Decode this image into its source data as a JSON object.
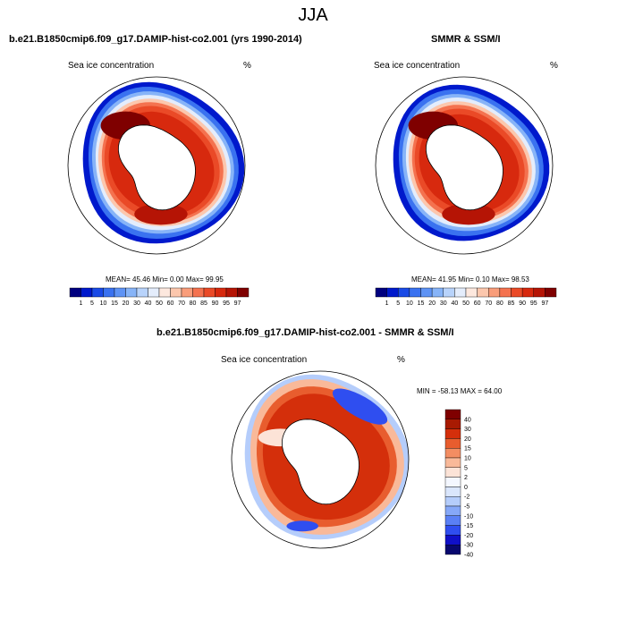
{
  "figure": {
    "title": "JJA"
  },
  "colors": {
    "abs": [
      "#00007f",
      "#0019cc",
      "#1a4ae6",
      "#3a72f0",
      "#5e93f5",
      "#87b4f8",
      "#b8d3fb",
      "#e4edfc",
      "#fde8de",
      "#fcc7ad",
      "#f99d7a",
      "#f4724f",
      "#ea4a27",
      "#d7290e",
      "#b51405",
      "#7f0000"
    ],
    "diff": [
      "#08086f",
      "#1010c8",
      "#2f4ef0",
      "#5a80f5",
      "#86a8f8",
      "#b5cdfb",
      "#dae6fc",
      "#f4f7ff",
      "#fce3d7",
      "#f9b999",
      "#f38d62",
      "#e85d2e",
      "#d42f0b",
      "#a81a02",
      "#7f0000"
    ]
  },
  "chart_data": [
    {
      "type": "heatmap",
      "projection": "south polar stereographic",
      "title": "b.e21.B1850cmip6.f09_g17.DAMIP-hist-co2.001 (yrs 1990-2014)",
      "variable": "Sea ice concentration",
      "units": "%",
      "stats": {
        "mean": 45.46,
        "min": 0.0,
        "max": 99.95
      },
      "stats_text": "MEAN=  45.46  Min=   0.00  Max=  99.95",
      "colorbar_labels": [
        "1",
        "5",
        "10",
        "15",
        "20",
        "30",
        "40",
        "50",
        "60",
        "70",
        "80",
        "85",
        "90",
        "95",
        "97"
      ]
    },
    {
      "type": "heatmap",
      "projection": "south polar stereographic",
      "title": "SMMR & SSM/I",
      "variable": "Sea ice concentration",
      "units": "%",
      "stats": {
        "mean": 41.95,
        "min": 0.1,
        "max": 98.53
      },
      "stats_text": "MEAN=  41.95  Min=   0.10  Max=  98.53",
      "colorbar_labels": [
        "1",
        "5",
        "10",
        "15",
        "20",
        "30",
        "40",
        "50",
        "60",
        "70",
        "80",
        "85",
        "90",
        "95",
        "97"
      ]
    },
    {
      "type": "heatmap",
      "projection": "south polar stereographic",
      "title": "b.e21.B1850cmip6.f09_g17.DAMIP-hist-co2.001 - SMMR & SSM/I",
      "variable": "Sea ice concentration",
      "units": "%",
      "stats": {
        "min": -58.13,
        "max": 64.0
      },
      "stats_text": "MIN = -58.13 MAX =  64.00",
      "colorbar_labels": [
        "40",
        "30",
        "20",
        "15",
        "10",
        "5",
        "2",
        "0",
        "-2",
        "-5",
        "-10",
        "-15",
        "-20",
        "-30",
        "-40"
      ]
    }
  ]
}
